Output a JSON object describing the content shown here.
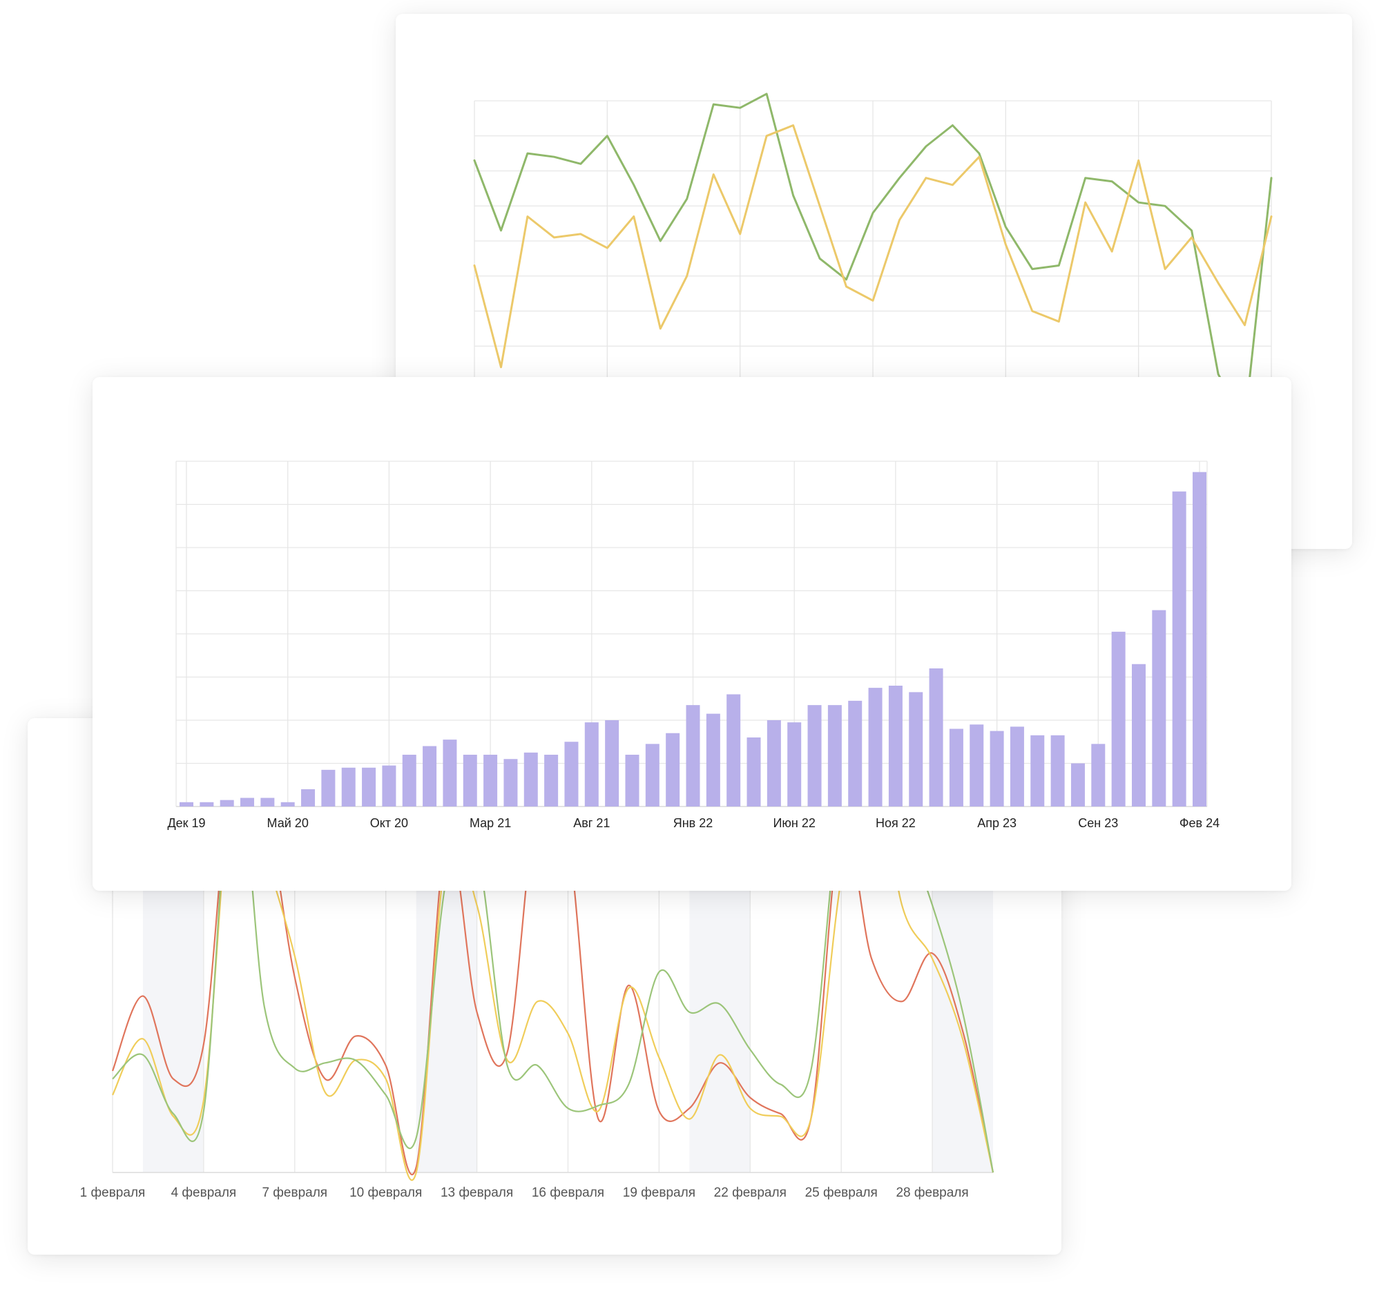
{
  "chart_data": [
    {
      "type": "line",
      "series": [
        {
          "values": [
            63,
            43,
            65,
            64,
            62,
            70,
            56,
            40,
            52,
            79,
            78,
            82,
            53,
            35,
            29,
            48,
            58,
            67,
            73,
            65,
            44,
            32,
            33,
            58,
            57,
            51,
            50,
            43,
            2,
            -12,
            58
          ],
          "color": "#8fb86a"
        },
        {
          "values": [
            33,
            4,
            47,
            41,
            42,
            38,
            47,
            15,
            30,
            59,
            42,
            70,
            73,
            50,
            27,
            23,
            46,
            58,
            56,
            64,
            39,
            20,
            17,
            51,
            37,
            63,
            32,
            41,
            28,
            16,
            47
          ],
          "color": "#ecc96a"
        }
      ],
      "ylim": [
        0,
        80
      ],
      "grid": true
    },
    {
      "type": "bar",
      "categories": [
        "Дек 19",
        "",
        "",
        "",
        "",
        "Май 20",
        "",
        "",
        "",
        "",
        "Окт 20",
        "",
        "",
        "",
        "",
        "Мар 21",
        "",
        "",
        "",
        "",
        "Авг 21",
        "",
        "",
        "",
        "",
        "Янв 22",
        "",
        "",
        "",
        "",
        "Июн 22",
        "",
        "",
        "",
        "",
        "Ноя 22",
        "",
        "",
        "",
        "",
        "Апр 23",
        "",
        "",
        "",
        "",
        "Сен 23",
        "",
        "",
        "",
        "",
        "Фев 24"
      ],
      "values": [
        2,
        2,
        3,
        4,
        4,
        2,
        8,
        17,
        18,
        18,
        19,
        24,
        28,
        31,
        24,
        24,
        22,
        25,
        24,
        30,
        39,
        40,
        24,
        29,
        34,
        47,
        43,
        52,
        32,
        40,
        39,
        47,
        47,
        49,
        55,
        56,
        53,
        64,
        36,
        38,
        35,
        37,
        33,
        33,
        20,
        29,
        81,
        66,
        91,
        146,
        155
      ],
      "color": "#b8b0ea",
      "ylim": [
        0,
        160
      ],
      "grid": true
    },
    {
      "type": "line",
      "categories": [
        "1 февраля",
        "4 февраля",
        "7 февраля",
        "10 февраля",
        "13 февраля",
        "16 февраля",
        "19 февраля",
        "22 февраля",
        "25 февраля",
        "28 февраля"
      ],
      "x": [
        1,
        2,
        3,
        4,
        5,
        6,
        7,
        8,
        9,
        10,
        11,
        12,
        13,
        14,
        15,
        16,
        17,
        18,
        19,
        20,
        21,
        22,
        23,
        24,
        25,
        26,
        27,
        28,
        29,
        30
      ],
      "series": [
        {
          "values": [
            38,
            66,
            35,
            48,
            160,
            140,
            73,
            35,
            51,
            40,
            2,
            125,
            60,
            45,
            140,
            125,
            20,
            70,
            23,
            24,
            41,
            28,
            22,
            20,
            130,
            80,
            64,
            82,
            53,
            0
          ],
          "color": "#e0755c"
        },
        {
          "values": [
            29,
            50,
            21,
            27,
            155,
            120,
            81,
            30,
            42,
            35,
            0,
            120,
            100,
            42,
            64,
            52,
            23,
            69,
            43,
            20,
            44,
            24,
            21,
            20,
            110,
            160,
            100,
            80,
            50,
            0
          ],
          "color": "#f0cd5a"
        },
        {
          "values": [
            35,
            44,
            22,
            23,
            160,
            62,
            39,
            41,
            42,
            29,
            13,
            110,
            120,
            40,
            40,
            24,
            25,
            33,
            75,
            60,
            63,
            46,
            33,
            38,
            140,
            150,
            130,
            100,
            60,
            0
          ],
          "color": "#9cc57a"
        }
      ],
      "shaded_periods": [
        [
          2,
          4
        ],
        [
          11,
          13
        ],
        [
          20,
          22
        ],
        [
          28,
          30
        ]
      ],
      "ylim": [
        0,
        170
      ],
      "grid": true
    }
  ]
}
